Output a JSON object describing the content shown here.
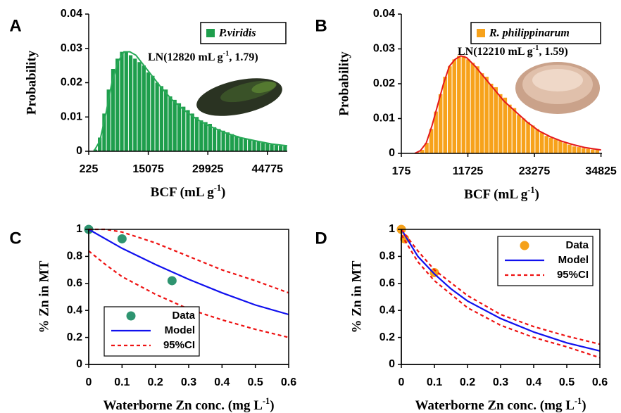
{
  "chart_data": [
    {
      "type": "histogram",
      "panel_label": "A",
      "name": "P.viridis",
      "color": "#1e9e4c",
      "annotation": [
        "LN(12820 mL g",
        "-1",
        ", 1.79)"
      ],
      "xlabel": [
        "BCF (mL g",
        "-1",
        ")"
      ],
      "ylabel": "Probability",
      "bins": [
        225,
        1325,
        2425,
        3525,
        4625,
        5725,
        6825,
        7925,
        9025,
        10125,
        11225,
        12325,
        13425,
        14525,
        15625,
        16725,
        17825,
        18925,
        20025,
        21125,
        22225,
        23325,
        24425,
        25525,
        26625,
        27725,
        28825,
        29925,
        31025,
        32125,
        33225,
        34325,
        35425,
        36525,
        37625,
        38725,
        39825,
        40925,
        42025,
        43125,
        44225,
        45325,
        46425,
        47525,
        48625,
        49725
      ],
      "values": [
        0,
        0.0005,
        0.004,
        0.011,
        0.018,
        0.024,
        0.027,
        0.029,
        0.029,
        0.028,
        0.027,
        0.026,
        0.025,
        0.023,
        0.022,
        0.02,
        0.019,
        0.018,
        0.016,
        0.015,
        0.014,
        0.013,
        0.012,
        0.011,
        0.01,
        0.009,
        0.0085,
        0.008,
        0.007,
        0.0065,
        0.006,
        0.0055,
        0.005,
        0.0045,
        0.004,
        0.0037,
        0.0034,
        0.003,
        0.0028,
        0.0025,
        0.0023,
        0.002,
        0.0018,
        0.0016,
        0.0015
      ],
      "fit": {
        "color": "#27a957",
        "x": [
          1500,
          3000,
          4500,
          6000,
          7500,
          9000,
          10500,
          12000,
          14000,
          16000,
          18000,
          21000,
          24000,
          27000,
          30000,
          34000,
          38000,
          42000,
          46000,
          49725
        ],
        "values": [
          0,
          0.003,
          0.011,
          0.02,
          0.026,
          0.029,
          0.029,
          0.028,
          0.025,
          0.022,
          0.019,
          0.015,
          0.012,
          0.0095,
          0.0075,
          0.0055,
          0.004,
          0.003,
          0.0021,
          0.0016
        ]
      },
      "xlim": [
        225,
        49725
      ],
      "xticks": [
        225,
        15075,
        29925,
        44775
      ],
      "ylim": [
        0,
        0.04
      ],
      "yticks": [
        0,
        0.01,
        0.02,
        0.03,
        0.04
      ],
      "legend": "upper right"
    },
    {
      "type": "histogram",
      "panel_label": "B",
      "name": "R. philippinarum",
      "color": "#f7a21b",
      "annotation": [
        "LN(12210 mL g",
        "-1",
        ", 1.59)"
      ],
      "xlabel": [
        "BCF (mL g",
        "-1",
        ")"
      ],
      "ylabel": "Probability",
      "bins": [
        175,
        975,
        1775,
        2575,
        3375,
        4175,
        4975,
        5775,
        6575,
        7375,
        8175,
        8975,
        9775,
        10575,
        11375,
        12175,
        12975,
        13775,
        14575,
        15375,
        16175,
        16975,
        17775,
        18575,
        19375,
        20175,
        20975,
        21775,
        22575,
        23375,
        24175,
        24975,
        25775,
        26575,
        27375,
        28175,
        28975,
        29775,
        30575,
        31375,
        32175,
        32975,
        33775,
        34575
      ],
      "values": [
        0,
        0,
        0,
        0.0003,
        0.001,
        0.003,
        0.007,
        0.012,
        0.017,
        0.022,
        0.025,
        0.027,
        0.028,
        0.028,
        0.027,
        0.026,
        0.025,
        0.023,
        0.022,
        0.02,
        0.019,
        0.017,
        0.016,
        0.014,
        0.013,
        0.011,
        0.01,
        0.009,
        0.008,
        0.007,
        0.006,
        0.005,
        0.0045,
        0.004,
        0.0035,
        0.003,
        0.0025,
        0.002,
        0.0018,
        0.0015,
        0.0013,
        0.0011,
        0.001
      ],
      "fit": {
        "color": "#e4191c",
        "x": [
          2500,
          3500,
          4500,
          5500,
          6500,
          7500,
          8500,
          9500,
          10500,
          11500,
          13000,
          14500,
          16000,
          18000,
          20000,
          22000,
          24000,
          26000,
          28000,
          30000,
          32000,
          34825
        ],
        "values": [
          0,
          0.0008,
          0.003,
          0.008,
          0.014,
          0.02,
          0.025,
          0.027,
          0.028,
          0.0275,
          0.025,
          0.022,
          0.019,
          0.015,
          0.012,
          0.009,
          0.0065,
          0.0048,
          0.0035,
          0.0025,
          0.0017,
          0.001
        ]
      },
      "xlim": [
        175,
        35000
      ],
      "xticks": [
        175,
        11725,
        23275,
        34825
      ],
      "ylim": [
        0,
        0.04
      ],
      "yticks": [
        0,
        0.01,
        0.02,
        0.03,
        0.04
      ],
      "legend": "upper right"
    },
    {
      "type": "line",
      "panel_label": "C",
      "frame": true,
      "xlabel": [
        "Waterborne Zn conc. (mg L",
        "-1",
        ")"
      ],
      "ylabel": "% Zn in MT",
      "series": [
        {
          "name": "Data",
          "color": "#2e9470",
          "style": "markers",
          "x": [
            0,
            0.1,
            0.25
          ],
          "values": [
            1,
            0.93,
            0.62
          ]
        },
        {
          "name": "Model",
          "color": "#1010ee",
          "style": "solid",
          "x": [
            0,
            0.1,
            0.2,
            0.3,
            0.4,
            0.5,
            0.6
          ],
          "values": [
            1,
            0.86,
            0.74,
            0.63,
            0.53,
            0.44,
            0.37
          ]
        },
        {
          "name": "95%CI",
          "color": "#ee1111",
          "style": "dashed",
          "x": [
            0,
            0.05,
            0.1,
            0.2,
            0.3,
            0.4,
            0.5,
            0.6
          ],
          "upper": [
            1,
            1,
            0.98,
            0.9,
            0.8,
            0.7,
            0.62,
            0.53
          ],
          "lower": [
            0.84,
            0.74,
            0.65,
            0.52,
            0.41,
            0.33,
            0.26,
            0.2
          ]
        }
      ],
      "xlim": [
        0,
        0.6
      ],
      "xticks": [
        0,
        0.1,
        0.2,
        0.3,
        0.4,
        0.5,
        0.6
      ],
      "ylim": [
        0,
        1
      ],
      "yticks": [
        0,
        0.2,
        0.4,
        0.6,
        0.8,
        1
      ],
      "legend": "lower left"
    },
    {
      "type": "line",
      "panel_label": "D",
      "frame": true,
      "xlabel": [
        "Waterborne Zn conc. (mg L",
        "-1",
        ")"
      ],
      "ylabel": "% Zn in MT",
      "series": [
        {
          "name": "Data",
          "color": "#f5a11a",
          "style": "markers",
          "x": [
            0,
            0.01,
            0.1
          ],
          "values": [
            1,
            0.93,
            0.68
          ]
        },
        {
          "name": "Model",
          "color": "#1010ee",
          "style": "solid",
          "x": [
            0,
            0.05,
            0.1,
            0.15,
            0.2,
            0.3,
            0.4,
            0.5,
            0.6
          ],
          "values": [
            1,
            0.8,
            0.67,
            0.56,
            0.47,
            0.34,
            0.24,
            0.16,
            0.1
          ]
        },
        {
          "name": "95%CI",
          "color": "#ee1111",
          "style": "dashed",
          "x": [
            0,
            0.05,
            0.1,
            0.2,
            0.3,
            0.4,
            0.5,
            0.6
          ],
          "upper": [
            1,
            0.84,
            0.7,
            0.51,
            0.37,
            0.28,
            0.21,
            0.15
          ],
          "lower": [
            0.96,
            0.76,
            0.62,
            0.42,
            0.29,
            0.2,
            0.13,
            0.05
          ]
        }
      ],
      "xlim": [
        0,
        0.6
      ],
      "xticks": [
        0,
        0.1,
        0.2,
        0.3,
        0.4,
        0.5,
        0.6
      ],
      "ylim": [
        0,
        1
      ],
      "yticks": [
        0,
        0.2,
        0.4,
        0.6,
        0.8,
        1
      ],
      "legend": "upper right"
    }
  ]
}
